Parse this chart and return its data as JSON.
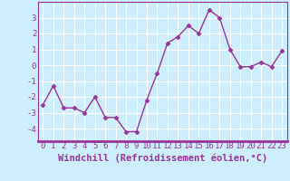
{
  "x": [
    0,
    1,
    2,
    3,
    4,
    5,
    6,
    7,
    8,
    9,
    10,
    11,
    12,
    13,
    14,
    15,
    16,
    17,
    18,
    19,
    20,
    21,
    22,
    23
  ],
  "y": [
    -2.5,
    -1.3,
    -2.7,
    -2.7,
    -3.0,
    -2.0,
    -3.3,
    -3.3,
    -4.2,
    -4.2,
    -2.2,
    -0.5,
    1.4,
    1.8,
    2.5,
    2.0,
    3.5,
    3.0,
    1.0,
    -0.1,
    -0.1,
    0.2,
    -0.1,
    0.9
  ],
  "line_color": "#993399",
  "marker": "D",
  "markersize": 2.5,
  "linewidth": 1.0,
  "bg_color": "#cceeff",
  "plot_bg_color": "#cceeff",
  "grid_color": "#ffffff",
  "xlabel": "Windchill (Refroidissement éolien,°C)",
  "xlabel_fontsize": 7.5,
  "ylabel_ticks": [
    -4,
    -3,
    -2,
    -1,
    0,
    1,
    2,
    3
  ],
  "xlim": [
    -0.5,
    23.5
  ],
  "ylim": [
    -4.8,
    4.0
  ],
  "tick_fontsize": 6.5,
  "tick_color": "#993399",
  "spine_color": "#993399",
  "bottom_bar_color": "#993399"
}
